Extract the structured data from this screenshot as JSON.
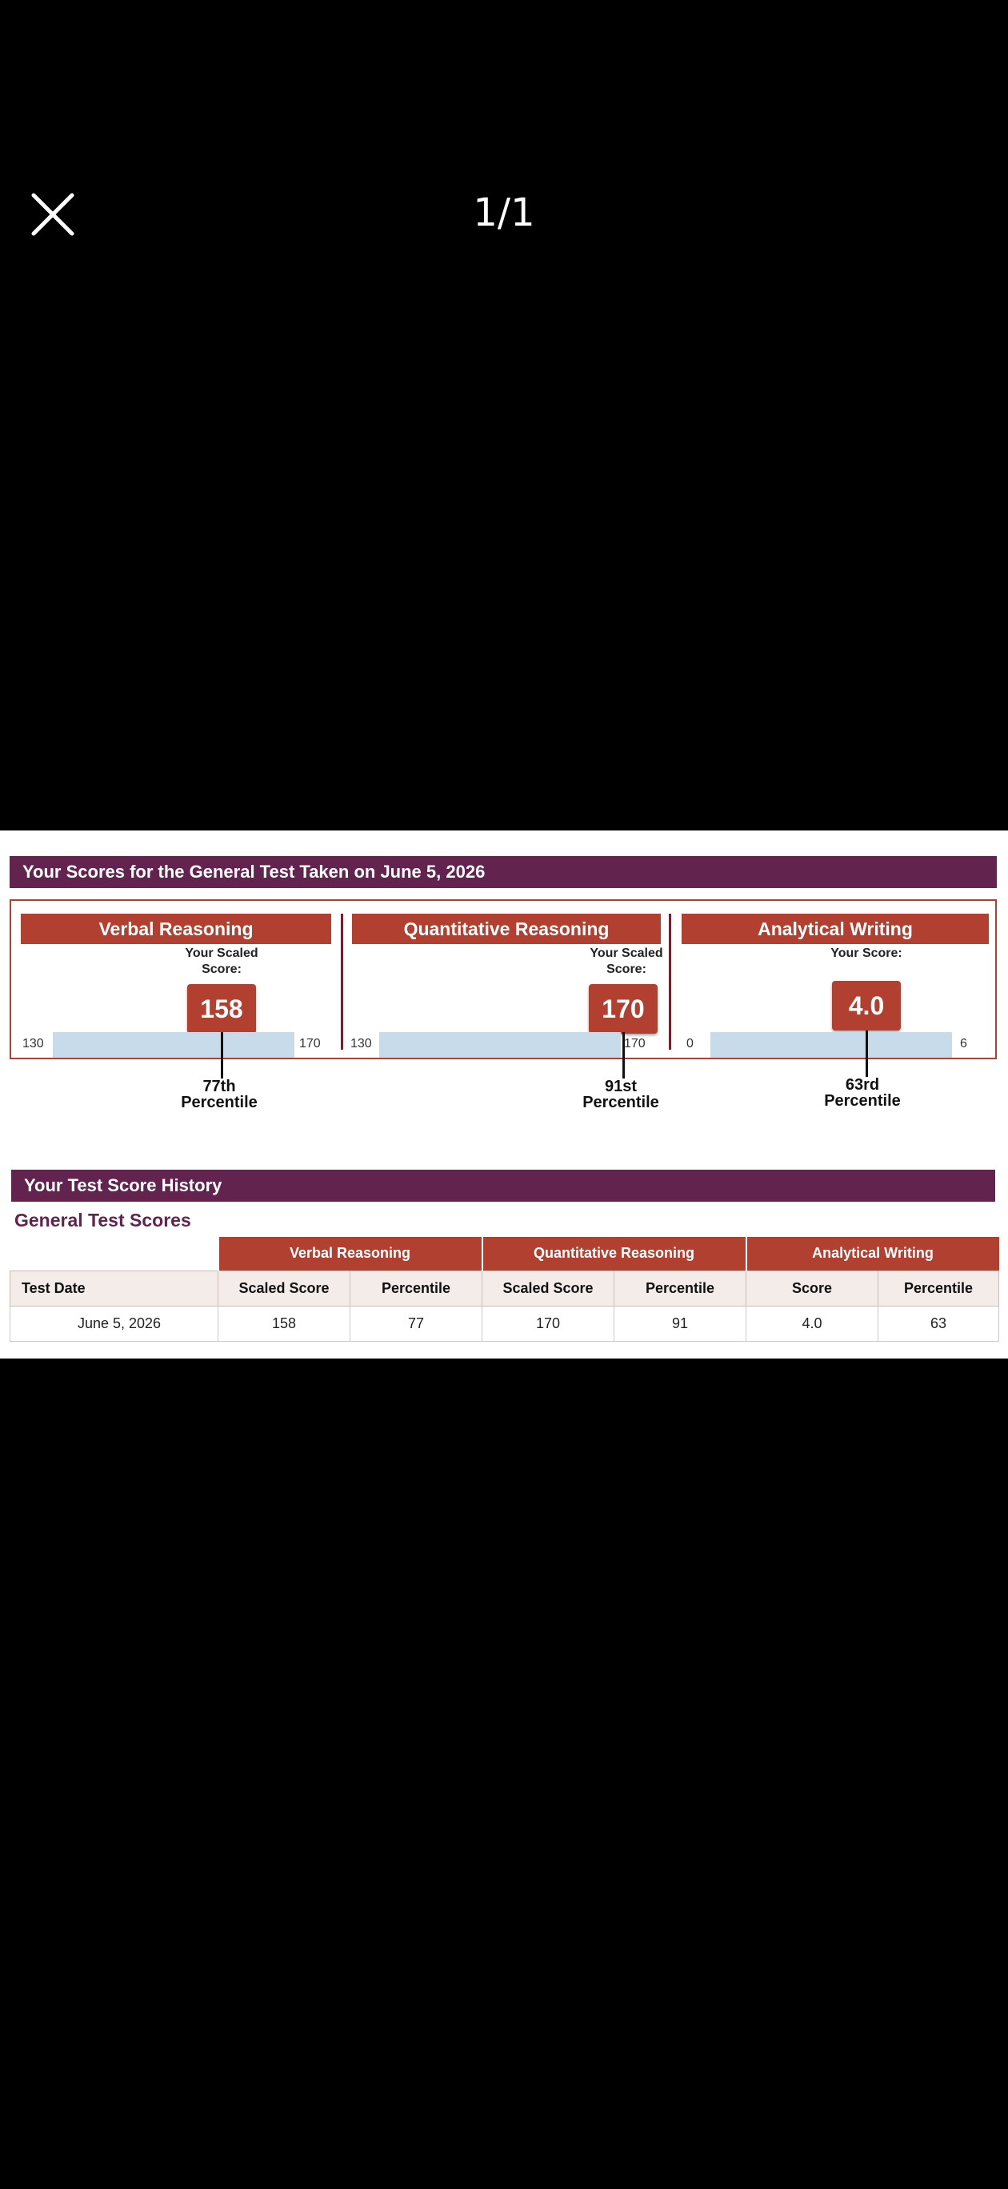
{
  "viewer": {
    "page_counter": "1/1"
  },
  "scores_banner": "Your Scores for the General Test Taken on June 5, 2026",
  "panels": {
    "verbal": {
      "title": "Verbal Reasoning",
      "score_label": "Your Scaled Score:",
      "score": "158",
      "min": "130",
      "max": "170",
      "score_value": 158,
      "range": [
        130,
        170
      ],
      "percentile": "77th",
      "percentile_word": "Percentile"
    },
    "quant": {
      "title": "Quantitative Reasoning",
      "score_label": "Your Scaled Score:",
      "score": "170",
      "min": "130",
      "max": "170",
      "score_value": 170,
      "range": [
        130,
        170
      ],
      "percentile": "91st",
      "percentile_word": "Percentile"
    },
    "writing": {
      "title": "Analytical Writing",
      "score_label": "Your Score:",
      "score": "4.0",
      "min": "0",
      "max": "6",
      "score_value": 4.0,
      "range": [
        0,
        6
      ],
      "percentile": "63rd",
      "percentile_word": "Percentile"
    }
  },
  "history_banner": "Your Test Score History",
  "history_title": "General Test Scores",
  "history_table": {
    "groups": [
      "Verbal Reasoning",
      "Quantitative Reasoning",
      "Analytical Writing"
    ],
    "columns": [
      "Test Date",
      "Scaled Score",
      "Percentile",
      "Scaled Score",
      "Percentile",
      "Score",
      "Percentile"
    ],
    "rows": [
      [
        "June 5, 2026",
        "158",
        "77",
        "170",
        "91",
        "4.0",
        "63"
      ]
    ]
  },
  "colors": {
    "banner": "#62244e",
    "accent": "#b24031",
    "bar": "#c7dbea"
  }
}
